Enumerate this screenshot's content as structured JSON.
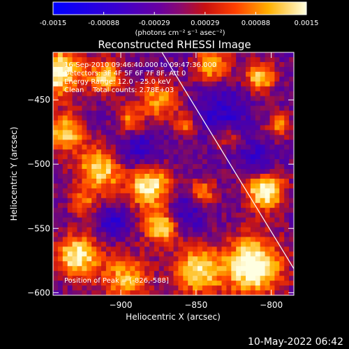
{
  "colorbar": {
    "ticks": [
      "-0.0015",
      "-0.00088",
      "-0.00029",
      "0.00029",
      "0.00088",
      "0.0015"
    ],
    "unit_label": "(photons cm⁻² s⁻¹ asec⁻²)"
  },
  "chart_data": {
    "type": "heatmap",
    "title": "Reconstructed RHESSI Image",
    "xlabel": "Heliocentric X (arcsec)",
    "ylabel": "Heliocentric Y (arcsec)",
    "xlim": [
      -945,
      -785
    ],
    "ylim": [
      -602,
      -413
    ],
    "xticks": [
      -900,
      -850,
      -800
    ],
    "yticks": [
      -450,
      -500,
      -550,
      -600
    ],
    "xtick_labels": [
      "−900",
      "−850",
      "−800"
    ],
    "ytick_labels": [
      "−450",
      "−500",
      "−550",
      "−600"
    ],
    "color_range": [
      -0.0015,
      0.0015
    ],
    "colormap": "blue-purple-red-yellow-white",
    "annotations": [
      "16-Sep-2010 09:46:40.000 to 09:47:36.000",
      "Detectors: 3F 4F 5F 6F 7F 8F, Att 0",
      "Energy Range: 12.0 - 25.0 keV",
      "Clean    Total counts: 2.78E+03"
    ],
    "peak_label": "Position of Peak = [-826,-588]",
    "peak_position": [
      -826,
      -588
    ],
    "limb_line_color": "#ffffff"
  },
  "footer": {
    "date": "10-May-2022 06:42"
  }
}
